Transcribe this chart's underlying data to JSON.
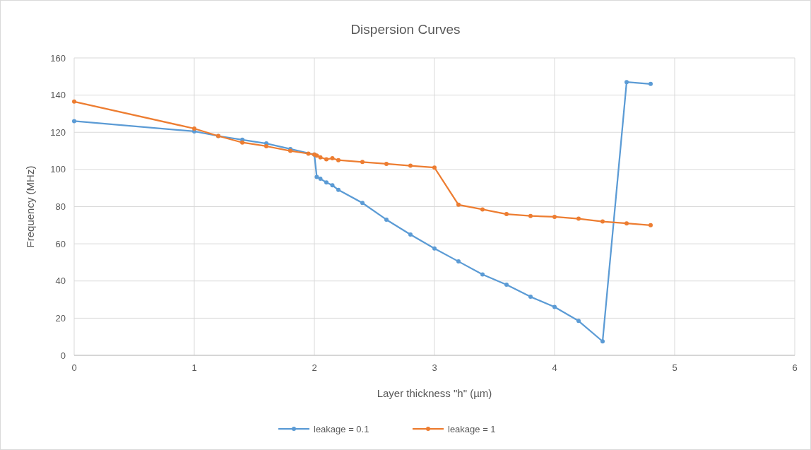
{
  "chart_data": {
    "type": "line",
    "title": "Dispersion Curves",
    "xlabel": "Layer thickness \"h\" (µm)",
    "ylabel": "Frequency (MHz)",
    "xlim": [
      0,
      6
    ],
    "xticks": [
      0,
      1,
      2,
      3,
      4,
      5,
      6
    ],
    "ylim": [
      0,
      160
    ],
    "yticks": [
      0,
      20,
      40,
      60,
      80,
      100,
      120,
      140,
      160
    ],
    "grid": true,
    "legend": "bottom",
    "marker": "circle",
    "line_style": "solid",
    "series": [
      {
        "name": "leakage = 0.1",
        "color": "#5b9bd5",
        "x": [
          0,
          1,
          1.2,
          1.4,
          1.6,
          1.8,
          2,
          2.02,
          2.05,
          2.1,
          2.15,
          2.2,
          2.4,
          2.6,
          2.8,
          3,
          3.2,
          3.4,
          3.6,
          3.8,
          4,
          4.2,
          4.4,
          4.6,
          4.8
        ],
        "values": [
          126,
          120.5,
          118,
          116,
          114,
          111,
          108,
          96,
          95,
          93,
          91.5,
          89,
          82,
          73,
          65,
          57.5,
          50.5,
          43.5,
          38,
          31.5,
          26,
          18.5,
          7.5,
          147,
          146
        ]
      },
      {
        "name": "leakage = 1",
        "color": "#ed7d31",
        "x": [
          0,
          1,
          1.2,
          1.4,
          1.6,
          1.8,
          1.95,
          2,
          2.02,
          2.05,
          2.1,
          2.15,
          2.2,
          2.4,
          2.6,
          2.8,
          3,
          3.2,
          3.4,
          3.6,
          3.8,
          4,
          4.2,
          4.4,
          4.6,
          4.8
        ],
        "values": [
          136.5,
          122,
          118,
          114.5,
          112.5,
          110,
          108.5,
          108,
          107.5,
          106.5,
          105.5,
          106,
          105,
          104,
          103,
          102,
          101,
          81,
          78.5,
          76,
          75,
          74.5,
          73.5,
          72,
          71,
          70
        ]
      }
    ]
  }
}
